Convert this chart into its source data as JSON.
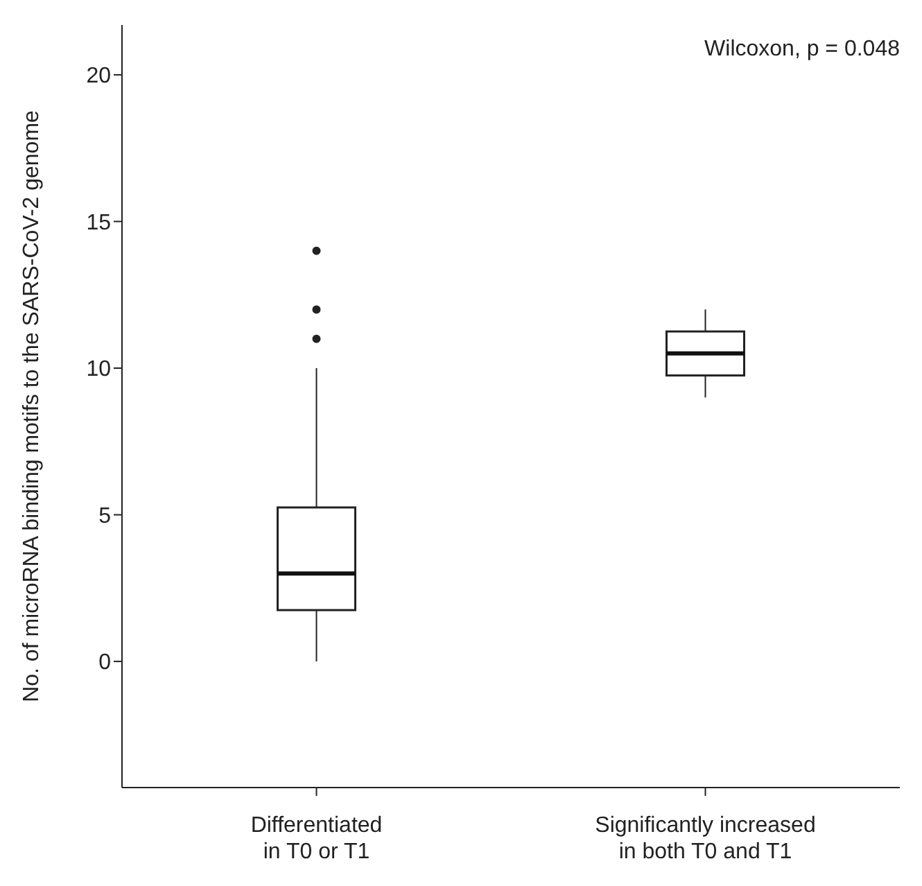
{
  "chart_data": {
    "type": "box",
    "ylabel": "No. of microRNA binding motifs to the SARS-CoV-2 genome",
    "categories": [
      "Differentiated\nin T0 or T1",
      "Significantly increased\nin both T0 and T1"
    ],
    "boxes": [
      {
        "low": 0,
        "q1": 1.75,
        "median": 3,
        "q3": 5.25,
        "high": 10,
        "outliers": [
          11,
          12,
          14
        ]
      },
      {
        "low": 9,
        "q1": 9.75,
        "median": 10.5,
        "q3": 11.25,
        "high": 12
      }
    ],
    "ylim": [
      -4.3,
      21.7
    ],
    "yticks": [
      0,
      5,
      10,
      15,
      20
    ],
    "annotations": [
      "Wilcoxon, p = 0.048"
    ]
  }
}
